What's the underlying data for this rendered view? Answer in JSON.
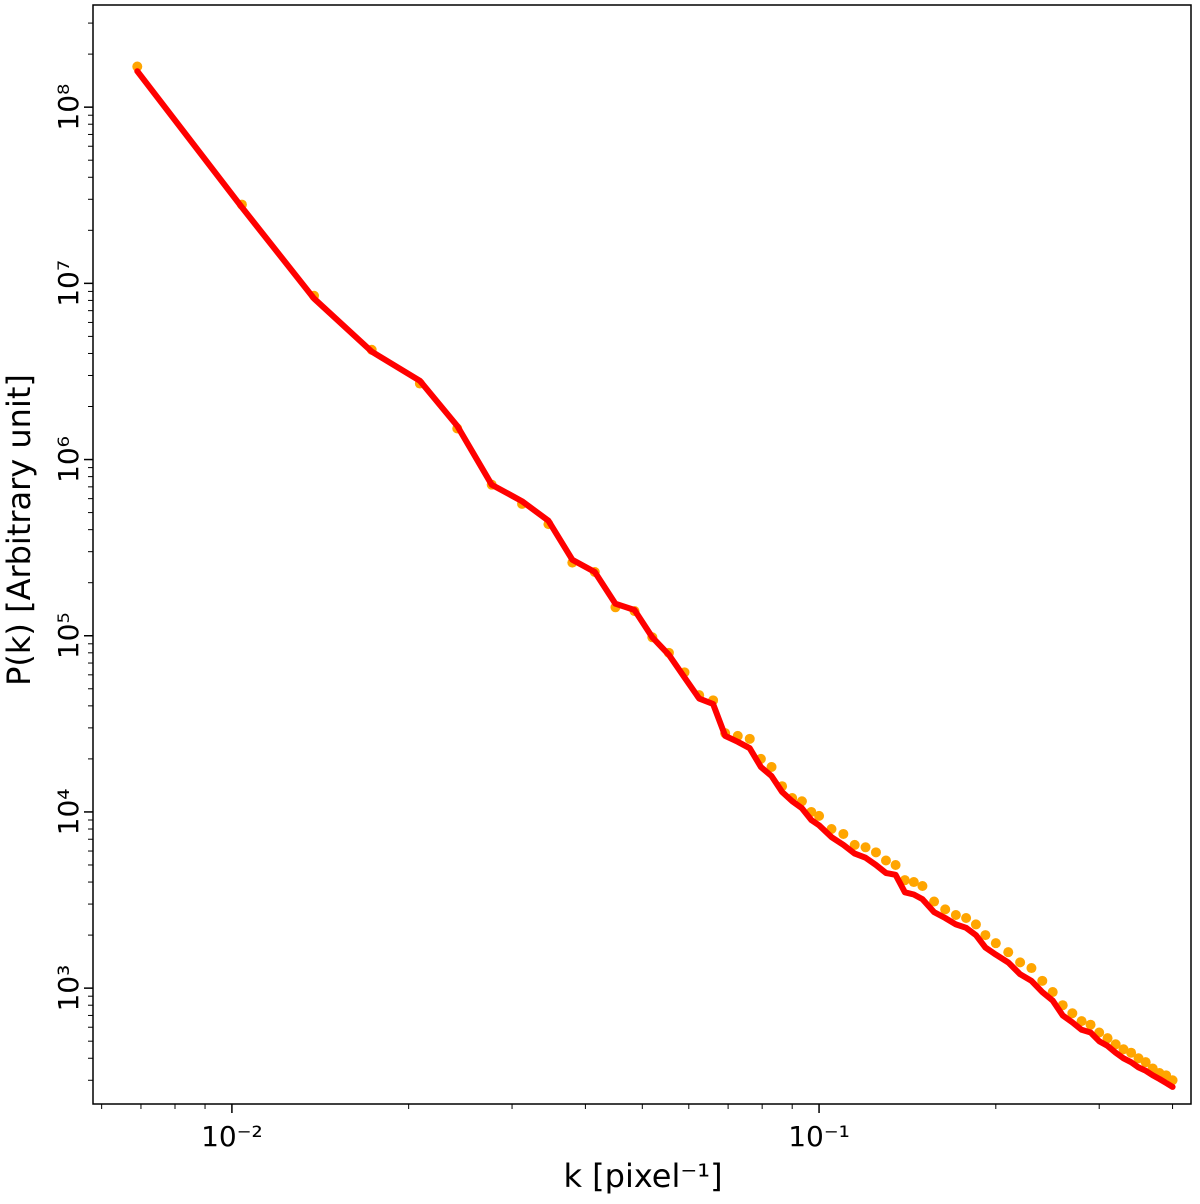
{
  "chart_data": {
    "type": "scatter",
    "xlabel": "k [pixel⁻¹]",
    "ylabel": "P(k) [Arbitrary unit]",
    "x_scale": "log",
    "y_scale": "log",
    "xlim": [
      0.0058,
      0.43
    ],
    "ylim": [
      220,
      380000000
    ],
    "x_ticks": [
      {
        "value": 0.01,
        "label": "10⁻²"
      },
      {
        "value": 0.1,
        "label": "10⁻¹"
      }
    ],
    "y_ticks": [
      {
        "value": 1000,
        "label": "10³"
      },
      {
        "value": 10000,
        "label": "10⁴"
      },
      {
        "value": 100000,
        "label": "10⁵"
      },
      {
        "value": 1000000,
        "label": "10⁶"
      },
      {
        "value": 10000000,
        "label": "10⁷"
      },
      {
        "value": 100000000,
        "label": "10⁸"
      }
    ],
    "grid": false,
    "series": [
      {
        "kind": "points",
        "color": "#ffa500",
        "points": [
          [
            0.0069,
            170000000
          ],
          [
            0.0104,
            28000000
          ],
          [
            0.0138,
            8500000
          ],
          [
            0.0173,
            4200000
          ],
          [
            0.0209,
            2700000
          ],
          [
            0.0242,
            1500000
          ],
          [
            0.0277,
            720000
          ],
          [
            0.0312,
            560000
          ],
          [
            0.0346,
            430000
          ],
          [
            0.038,
            260000
          ],
          [
            0.0415,
            230000
          ],
          [
            0.045,
            145000
          ],
          [
            0.0485,
            138000
          ],
          [
            0.052,
            98000
          ],
          [
            0.0555,
            80000
          ],
          [
            0.059,
            62000
          ],
          [
            0.0625,
            46000
          ],
          [
            0.066,
            43000
          ],
          [
            0.0692,
            28000
          ],
          [
            0.0727,
            27000
          ],
          [
            0.0762,
            26000
          ],
          [
            0.0796,
            20000
          ],
          [
            0.083,
            18000
          ],
          [
            0.0865,
            14000
          ],
          [
            0.09,
            12000
          ],
          [
            0.0935,
            11500
          ],
          [
            0.097,
            10000
          ],
          [
            0.1,
            9500
          ],
          [
            0.105,
            8000
          ],
          [
            0.11,
            7500
          ],
          [
            0.115,
            6500
          ],
          [
            0.12,
            6300
          ],
          [
            0.125,
            5900
          ],
          [
            0.13,
            5300
          ],
          [
            0.135,
            5000
          ],
          [
            0.14,
            4100
          ],
          [
            0.145,
            4000
          ],
          [
            0.15,
            3800
          ],
          [
            0.157,
            3100
          ],
          [
            0.164,
            2800
          ],
          [
            0.171,
            2600
          ],
          [
            0.178,
            2500
          ],
          [
            0.185,
            2300
          ],
          [
            0.192,
            2000
          ],
          [
            0.2,
            1800
          ],
          [
            0.21,
            1600
          ],
          [
            0.22,
            1400
          ],
          [
            0.23,
            1300
          ],
          [
            0.24,
            1100
          ],
          [
            0.25,
            950
          ],
          [
            0.26,
            800
          ],
          [
            0.27,
            720
          ],
          [
            0.28,
            650
          ],
          [
            0.29,
            620
          ],
          [
            0.3,
            560
          ],
          [
            0.31,
            520
          ],
          [
            0.32,
            480
          ],
          [
            0.33,
            450
          ],
          [
            0.34,
            430
          ],
          [
            0.35,
            400
          ],
          [
            0.36,
            380
          ],
          [
            0.37,
            350
          ],
          [
            0.38,
            330
          ],
          [
            0.39,
            320
          ],
          [
            0.4,
            300
          ]
        ]
      },
      {
        "kind": "line",
        "color": "#ff0000",
        "points": [
          [
            0.0069,
            160000000
          ],
          [
            0.0104,
            27000000
          ],
          [
            0.0138,
            8200000
          ],
          [
            0.0173,
            4100000
          ],
          [
            0.0209,
            2800000
          ],
          [
            0.0242,
            1550000
          ],
          [
            0.0277,
            720000
          ],
          [
            0.0312,
            580000
          ],
          [
            0.0346,
            450000
          ],
          [
            0.038,
            270000
          ],
          [
            0.0415,
            230000
          ],
          [
            0.045,
            152000
          ],
          [
            0.0485,
            140000
          ],
          [
            0.052,
            98000
          ],
          [
            0.0555,
            78000
          ],
          [
            0.059,
            58000
          ],
          [
            0.0625,
            44000
          ],
          [
            0.066,
            41000
          ],
          [
            0.0692,
            27000
          ],
          [
            0.0727,
            25000
          ],
          [
            0.0762,
            23000
          ],
          [
            0.0796,
            18000
          ],
          [
            0.083,
            16000
          ],
          [
            0.0865,
            13000
          ],
          [
            0.09,
            11500
          ],
          [
            0.0935,
            10500
          ],
          [
            0.097,
            9000
          ],
          [
            0.1,
            8400
          ],
          [
            0.105,
            7200
          ],
          [
            0.11,
            6500
          ],
          [
            0.115,
            5800
          ],
          [
            0.12,
            5500
          ],
          [
            0.125,
            5000
          ],
          [
            0.13,
            4500
          ],
          [
            0.135,
            4400
          ],
          [
            0.14,
            3500
          ],
          [
            0.145,
            3400
          ],
          [
            0.15,
            3200
          ],
          [
            0.157,
            2700
          ],
          [
            0.164,
            2500
          ],
          [
            0.171,
            2300
          ],
          [
            0.178,
            2200
          ],
          [
            0.185,
            2000
          ],
          [
            0.192,
            1700
          ],
          [
            0.2,
            1550
          ],
          [
            0.21,
            1400
          ],
          [
            0.22,
            1200
          ],
          [
            0.23,
            1100
          ],
          [
            0.24,
            950
          ],
          [
            0.25,
            850
          ],
          [
            0.26,
            700
          ],
          [
            0.27,
            640
          ],
          [
            0.28,
            580
          ],
          [
            0.29,
            560
          ],
          [
            0.3,
            500
          ],
          [
            0.31,
            470
          ],
          [
            0.32,
            430
          ],
          [
            0.33,
            400
          ],
          [
            0.34,
            380
          ],
          [
            0.35,
            355
          ],
          [
            0.36,
            340
          ],
          [
            0.37,
            320
          ],
          [
            0.38,
            305
          ],
          [
            0.39,
            290
          ],
          [
            0.4,
            275
          ]
        ]
      }
    ]
  }
}
